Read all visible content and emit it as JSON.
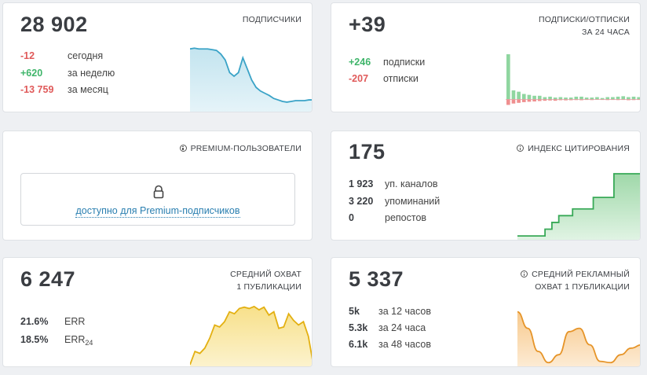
{
  "colors": {
    "negative": "#e05a5a",
    "positive": "#3fb56a",
    "blue_line": "#3aa3c7",
    "green_line": "#38a957",
    "yellow_line": "#e3b012",
    "orange_line": "#e69428",
    "link": "#2a7fb0"
  },
  "subscribers": {
    "value": "28 902",
    "title": "ПОДПИСЧИКИ",
    "today_value": "-12",
    "today_label": "сегодня",
    "week_value": "+620",
    "week_label": "за неделю",
    "month_value": "-13 759",
    "month_label": "за месяц",
    "trend": [
      0.87,
      0.88,
      0.87,
      0.87,
      0.87,
      0.86,
      0.85,
      0.8,
      0.72,
      0.55,
      0.5,
      0.55,
      0.75,
      0.6,
      0.45,
      0.35,
      0.3,
      0.27,
      0.24,
      0.2,
      0.18,
      0.16,
      0.15,
      0.16,
      0.17,
      0.17,
      0.17,
      0.18,
      0.18
    ]
  },
  "subs_unsubs": {
    "value": "+39",
    "title_line1": "ПОДПИСКИ/ОТПИСКИ",
    "title_line2": "ЗА 24 ЧАСА",
    "subs_value": "+246",
    "subs_label": "подписки",
    "unsubs_value": "-207",
    "unsubs_label": "отписки",
    "bars_pos": [
      1.0,
      0.2,
      0.17,
      0.12,
      0.1,
      0.08,
      0.08,
      0.05,
      0.06,
      0.04,
      0.05,
      0.04,
      0.04,
      0.06,
      0.06,
      0.04,
      0.04,
      0.05,
      0.03,
      0.05,
      0.05,
      0.06,
      0.07,
      0.05,
      0.06,
      0.05
    ],
    "bars_neg": [
      0.4,
      0.3,
      0.25,
      0.2,
      0.17,
      0.15,
      0.12,
      0.1,
      0.08,
      0.1,
      0.06,
      0.07,
      0.06,
      0.05,
      0.06,
      0.04,
      0.05,
      0.03,
      0.04,
      0.05,
      0.04,
      0.05,
      0.04,
      0.06,
      0.05,
      0.04
    ]
  },
  "premium": {
    "title": "PREMIUM-ПОЛЬЗОВАТЕЛИ",
    "locked_text": "доступно для Premium-подписчиков",
    "icon": "lock-icon"
  },
  "citation": {
    "value": "175",
    "title": "ИНДЕКС ЦИТИРОВАНИЯ",
    "channels_value": "1 923",
    "channels_label": "уп. каналов",
    "mentions_value": "3 220",
    "mentions_label": "упоминаний",
    "reposts_value": "0",
    "reposts_label": "репостов",
    "steps": [
      0.08,
      0.08,
      0.08,
      0.08,
      0.18,
      0.28,
      0.38,
      0.38,
      0.48,
      0.48,
      0.48,
      0.65,
      0.65,
      0.65,
      1.0,
      1.0,
      1.0,
      1.0
    ]
  },
  "reach": {
    "value": "6 247",
    "title_line1": "СРЕДНИЙ ОХВАТ",
    "title_line2": "1 ПУБЛИКАЦИИ",
    "err_value": "21.6%",
    "err_label": "ERR",
    "err24_value": "18.5%",
    "err24_label": "ERR",
    "err24_sub": "24",
    "trend": [
      0.05,
      0.25,
      0.22,
      0.3,
      0.45,
      0.65,
      0.62,
      0.7,
      0.85,
      0.82,
      0.9,
      0.92,
      0.9,
      0.93,
      0.88,
      0.92,
      0.8,
      0.85,
      0.6,
      0.62,
      0.82,
      0.72,
      0.65,
      0.7,
      0.48,
      0.05
    ]
  },
  "ad_reach": {
    "value": "5 337",
    "title_line1": "СРЕДНИЙ РЕКЛАМНЫЙ",
    "title_line2": "ОХВАТ 1 ПУБЛИКАЦИИ",
    "r12_value": "5k",
    "r12_label": "за 12 часов",
    "r24_value": "5.3k",
    "r24_label": "за 24 часа",
    "r48_value": "6.1k",
    "r48_label": "за 48 часов",
    "trend": [
      0.85,
      0.6,
      0.25,
      0.08,
      0.2,
      0.55,
      0.6,
      0.35,
      0.1,
      0.08,
      0.2,
      0.3,
      0.35
    ]
  }
}
